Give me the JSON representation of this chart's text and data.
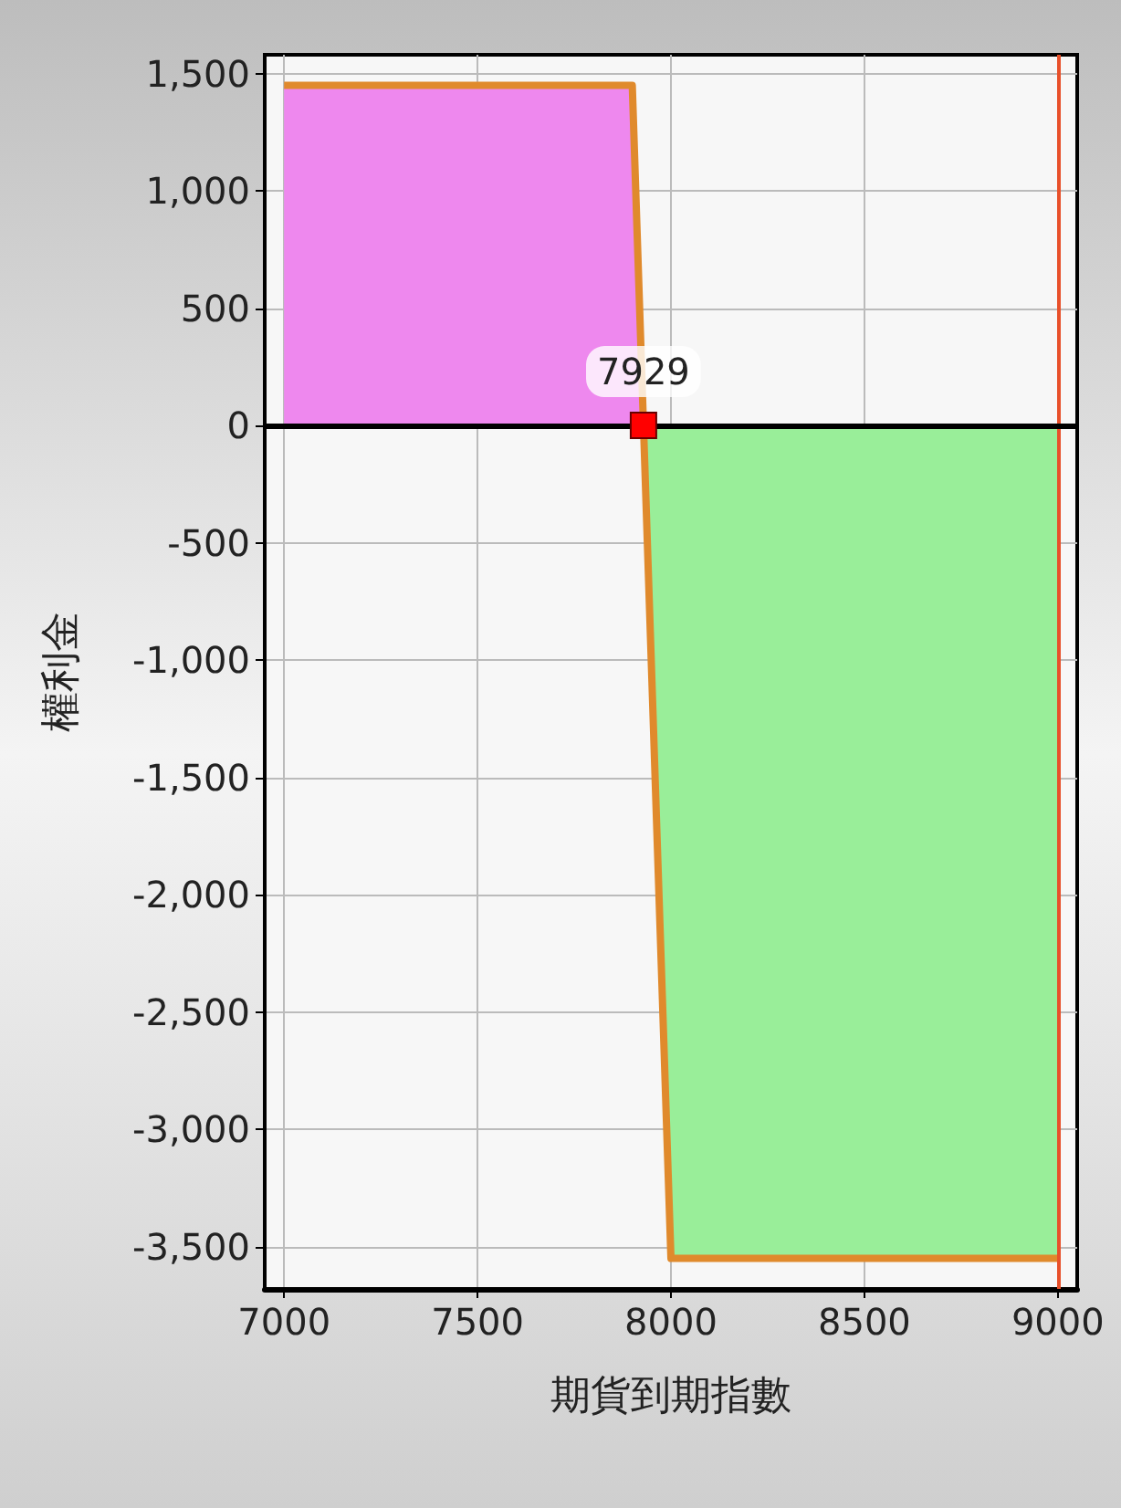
{
  "chart_data": {
    "type": "area",
    "xlabel": "期貨到期指數",
    "ylabel": "權利金",
    "x": [
      7000,
      7900,
      7929,
      8000,
      9000
    ],
    "series": [
      {
        "color": "#e08a2c",
        "values": [
          1450,
          1450,
          0,
          -3550,
          -3550
        ]
      }
    ],
    "xlim": [
      6950,
      9050
    ],
    "xticks": [
      7000,
      7500,
      8000,
      8500,
      9000
    ],
    "ylim": [
      -3680,
      1580
    ],
    "yticks": [
      {
        "value": -3500,
        "label": "-3,500"
      },
      {
        "value": -3000,
        "label": "-3,000"
      },
      {
        "value": -2500,
        "label": "-2,500"
      },
      {
        "value": -2000,
        "label": "-2,000"
      },
      {
        "value": -1500,
        "label": "-1,500"
      },
      {
        "value": -1000,
        "label": "-1,000"
      },
      -500,
      0,
      500,
      {
        "value": 1000,
        "label": "1,000"
      },
      {
        "value": 1500,
        "label": "1,500"
      }
    ],
    "ref_lines": [
      {
        "axis": "x",
        "value": 9000,
        "color": "#e8502a"
      },
      {
        "axis": "y",
        "value": 0,
        "color": "#000000"
      }
    ],
    "annotations": [
      {
        "text": "7929",
        "x": 7929,
        "y": 0
      }
    ],
    "grid": true,
    "marker": "none",
    "line_style": "solid"
  }
}
